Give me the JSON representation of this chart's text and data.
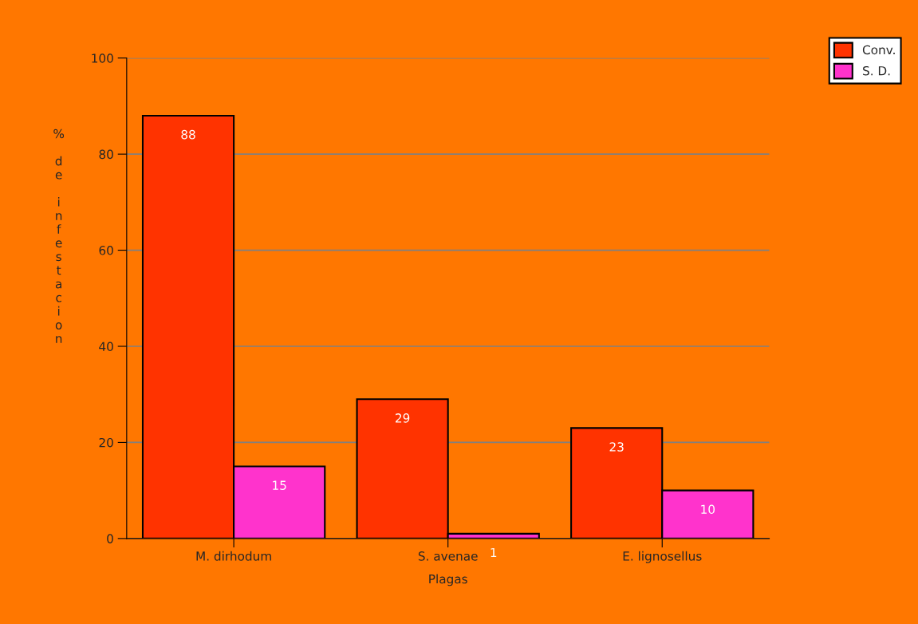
{
  "chart_data": {
    "type": "bar",
    "xlabel": "Plagas",
    "ylabel": "% de infestacion",
    "categories": [
      "M. dirhodum",
      "S. avenae",
      "E. lignosellus"
    ],
    "series": [
      {
        "name": "Conv.",
        "color": "#ff3300",
        "values": [
          88,
          29,
          23
        ]
      },
      {
        "name": "S. D.",
        "color": "#ff33cc",
        "values": [
          15,
          1,
          10
        ]
      }
    ],
    "ylim": [
      0,
      100
    ],
    "yticks": [
      0,
      20,
      40,
      60,
      80,
      100
    ],
    "grid": "y",
    "legend": "top right",
    "data_labels": true
  }
}
